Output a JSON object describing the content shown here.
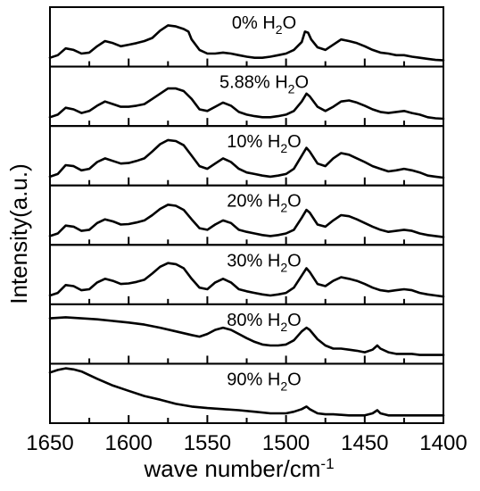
{
  "chart_data": {
    "type": "line",
    "title": "",
    "xlabel": "wave number/cm",
    "xlabel_sup": "-1",
    "ylabel": "Intensity(a.u.)",
    "xlim": [
      1650,
      1400
    ],
    "x_reversed": true,
    "x_ticks": [
      "1650",
      "1600",
      "1550",
      "1500",
      "1450",
      "1400"
    ],
    "stacked_panels": true,
    "grid": false,
    "legend": "none",
    "series": [
      {
        "label_prefix": "0% H",
        "label_sub": "2",
        "label_suffix": "O",
        "x": [
          1650,
          1645,
          1640,
          1635,
          1630,
          1625,
          1620,
          1615,
          1610,
          1605,
          1600,
          1595,
          1590,
          1585,
          1580,
          1575,
          1570,
          1565,
          1562,
          1560,
          1555,
          1550,
          1545,
          1540,
          1535,
          1530,
          1525,
          1520,
          1515,
          1510,
          1505,
          1500,
          1495,
          1490,
          1488,
          1486,
          1484,
          1480,
          1475,
          1470,
          1465,
          1460,
          1455,
          1450,
          1445,
          1440,
          1435,
          1430,
          1425,
          1420,
          1415,
          1410,
          1405,
          1400
        ],
        "y": [
          0.1,
          0.15,
          0.28,
          0.25,
          0.18,
          0.2,
          0.32,
          0.42,
          0.38,
          0.32,
          0.35,
          0.38,
          0.42,
          0.48,
          0.62,
          0.72,
          0.7,
          0.65,
          0.6,
          0.45,
          0.25,
          0.18,
          0.18,
          0.2,
          0.18,
          0.15,
          0.12,
          0.1,
          0.1,
          0.12,
          0.15,
          0.18,
          0.25,
          0.4,
          0.6,
          0.58,
          0.45,
          0.3,
          0.25,
          0.35,
          0.45,
          0.42,
          0.38,
          0.32,
          0.25,
          0.2,
          0.18,
          0.15,
          0.15,
          0.12,
          0.1,
          0.08,
          0.06,
          0.05
        ]
      },
      {
        "label_prefix": "5.88% H",
        "label_sub": "2",
        "label_suffix": "O",
        "x": [
          1650,
          1645,
          1640,
          1635,
          1630,
          1625,
          1620,
          1615,
          1610,
          1605,
          1600,
          1595,
          1590,
          1585,
          1580,
          1575,
          1570,
          1565,
          1560,
          1555,
          1550,
          1545,
          1540,
          1535,
          1530,
          1525,
          1520,
          1515,
          1510,
          1505,
          1500,
          1495,
          1490,
          1487,
          1485,
          1480,
          1475,
          1470,
          1465,
          1460,
          1455,
          1450,
          1445,
          1440,
          1435,
          1430,
          1425,
          1420,
          1415,
          1410,
          1405,
          1400
        ],
        "y": [
          0.1,
          0.15,
          0.28,
          0.25,
          0.18,
          0.22,
          0.32,
          0.4,
          0.35,
          0.3,
          0.3,
          0.32,
          0.35,
          0.45,
          0.55,
          0.65,
          0.65,
          0.6,
          0.45,
          0.25,
          0.22,
          0.3,
          0.38,
          0.32,
          0.2,
          0.15,
          0.12,
          0.1,
          0.1,
          0.12,
          0.15,
          0.22,
          0.4,
          0.55,
          0.5,
          0.3,
          0.22,
          0.3,
          0.4,
          0.42,
          0.38,
          0.32,
          0.25,
          0.2,
          0.18,
          0.2,
          0.22,
          0.18,
          0.15,
          0.1,
          0.08,
          0.07
        ]
      },
      {
        "label_prefix": "10% H",
        "label_sub": "2",
        "label_suffix": "O",
        "x": [
          1650,
          1645,
          1640,
          1635,
          1630,
          1625,
          1620,
          1615,
          1610,
          1605,
          1600,
          1595,
          1590,
          1585,
          1580,
          1575,
          1570,
          1565,
          1560,
          1555,
          1550,
          1545,
          1540,
          1535,
          1530,
          1525,
          1520,
          1515,
          1510,
          1505,
          1500,
          1495,
          1490,
          1487,
          1485,
          1480,
          1475,
          1470,
          1465,
          1460,
          1455,
          1450,
          1445,
          1440,
          1435,
          1430,
          1425,
          1420,
          1415,
          1410,
          1405,
          1400
        ],
        "y": [
          0.1,
          0.15,
          0.32,
          0.3,
          0.22,
          0.25,
          0.38,
          0.45,
          0.4,
          0.35,
          0.36,
          0.4,
          0.45,
          0.58,
          0.72,
          0.8,
          0.78,
          0.7,
          0.5,
          0.3,
          0.25,
          0.35,
          0.45,
          0.38,
          0.25,
          0.18,
          0.15,
          0.12,
          0.1,
          0.12,
          0.15,
          0.25,
          0.5,
          0.65,
          0.58,
          0.35,
          0.3,
          0.45,
          0.55,
          0.52,
          0.45,
          0.38,
          0.3,
          0.25,
          0.2,
          0.22,
          0.25,
          0.22,
          0.18,
          0.12,
          0.1,
          0.08
        ]
      },
      {
        "label_prefix": "20% H",
        "label_sub": "2",
        "label_suffix": "O",
        "x": [
          1650,
          1645,
          1640,
          1635,
          1630,
          1625,
          1620,
          1615,
          1610,
          1605,
          1600,
          1595,
          1590,
          1585,
          1580,
          1575,
          1570,
          1565,
          1560,
          1555,
          1550,
          1545,
          1540,
          1535,
          1530,
          1525,
          1520,
          1515,
          1510,
          1505,
          1500,
          1495,
          1490,
          1487,
          1485,
          1480,
          1475,
          1470,
          1465,
          1460,
          1455,
          1450,
          1445,
          1440,
          1435,
          1430,
          1425,
          1420,
          1415,
          1410,
          1405,
          1400
        ],
        "y": [
          0.1,
          0.15,
          0.3,
          0.28,
          0.2,
          0.22,
          0.35,
          0.42,
          0.38,
          0.32,
          0.33,
          0.36,
          0.4,
          0.5,
          0.62,
          0.7,
          0.68,
          0.6,
          0.42,
          0.25,
          0.22,
          0.32,
          0.4,
          0.35,
          0.22,
          0.18,
          0.15,
          0.12,
          0.1,
          0.12,
          0.15,
          0.22,
          0.45,
          0.6,
          0.55,
          0.32,
          0.28,
          0.4,
          0.5,
          0.48,
          0.42,
          0.35,
          0.28,
          0.22,
          0.18,
          0.2,
          0.22,
          0.2,
          0.15,
          0.12,
          0.1,
          0.08
        ]
      },
      {
        "label_prefix": "30% H",
        "label_sub": "2",
        "label_suffix": "O",
        "x": [
          1650,
          1645,
          1640,
          1635,
          1630,
          1625,
          1620,
          1615,
          1610,
          1605,
          1600,
          1595,
          1590,
          1585,
          1580,
          1575,
          1570,
          1565,
          1560,
          1555,
          1550,
          1545,
          1540,
          1535,
          1530,
          1525,
          1520,
          1515,
          1510,
          1505,
          1500,
          1495,
          1490,
          1487,
          1485,
          1480,
          1475,
          1470,
          1465,
          1460,
          1455,
          1450,
          1445,
          1440,
          1435,
          1430,
          1425,
          1420,
          1415,
          1410,
          1405,
          1400
        ],
        "y": [
          0.1,
          0.15,
          0.3,
          0.28,
          0.2,
          0.22,
          0.35,
          0.42,
          0.38,
          0.32,
          0.33,
          0.36,
          0.4,
          0.52,
          0.65,
          0.72,
          0.7,
          0.62,
          0.42,
          0.25,
          0.22,
          0.35,
          0.42,
          0.35,
          0.22,
          0.18,
          0.15,
          0.12,
          0.1,
          0.12,
          0.15,
          0.25,
          0.48,
          0.62,
          0.55,
          0.32,
          0.28,
          0.38,
          0.45,
          0.42,
          0.38,
          0.32,
          0.25,
          0.2,
          0.18,
          0.2,
          0.22,
          0.2,
          0.15,
          0.12,
          0.1,
          0.08
        ]
      },
      {
        "label_prefix": "80% H",
        "label_sub": "2",
        "label_suffix": "O",
        "x": [
          1650,
          1640,
          1630,
          1620,
          1610,
          1600,
          1590,
          1580,
          1570,
          1560,
          1555,
          1550,
          1545,
          1540,
          1535,
          1530,
          1525,
          1520,
          1515,
          1510,
          1505,
          1500,
          1495,
          1490,
          1487,
          1485,
          1480,
          1475,
          1470,
          1465,
          1460,
          1455,
          1450,
          1445,
          1442,
          1440,
          1435,
          1430,
          1425,
          1420,
          1415,
          1410,
          1405,
          1400
        ],
        "y": [
          0.8,
          0.82,
          0.8,
          0.78,
          0.75,
          0.72,
          0.68,
          0.62,
          0.55,
          0.48,
          0.45,
          0.5,
          0.58,
          0.62,
          0.58,
          0.5,
          0.42,
          0.35,
          0.3,
          0.28,
          0.28,
          0.3,
          0.38,
          0.55,
          0.62,
          0.58,
          0.4,
          0.28,
          0.22,
          0.22,
          0.2,
          0.18,
          0.15,
          0.2,
          0.28,
          0.22,
          0.15,
          0.12,
          0.12,
          0.12,
          0.1,
          0.1,
          0.1,
          0.1
        ]
      },
      {
        "label_prefix": "90% H",
        "label_sub": "2",
        "label_suffix": "O",
        "x": [
          1650,
          1645,
          1640,
          1635,
          1630,
          1625,
          1620,
          1610,
          1600,
          1590,
          1580,
          1570,
          1560,
          1550,
          1540,
          1530,
          1520,
          1510,
          1500,
          1495,
          1490,
          1487,
          1485,
          1480,
          1475,
          1470,
          1460,
          1450,
          1445,
          1442,
          1440,
          1435,
          1430,
          1420,
          1410,
          1400
        ],
        "y": [
          0.9,
          0.95,
          0.98,
          0.96,
          0.92,
          0.85,
          0.78,
          0.65,
          0.55,
          0.45,
          0.38,
          0.3,
          0.25,
          0.22,
          0.2,
          0.18,
          0.15,
          0.12,
          0.12,
          0.15,
          0.2,
          0.25,
          0.2,
          0.12,
          0.1,
          0.1,
          0.08,
          0.08,
          0.12,
          0.18,
          0.12,
          0.08,
          0.08,
          0.08,
          0.08,
          0.08
        ]
      }
    ]
  }
}
